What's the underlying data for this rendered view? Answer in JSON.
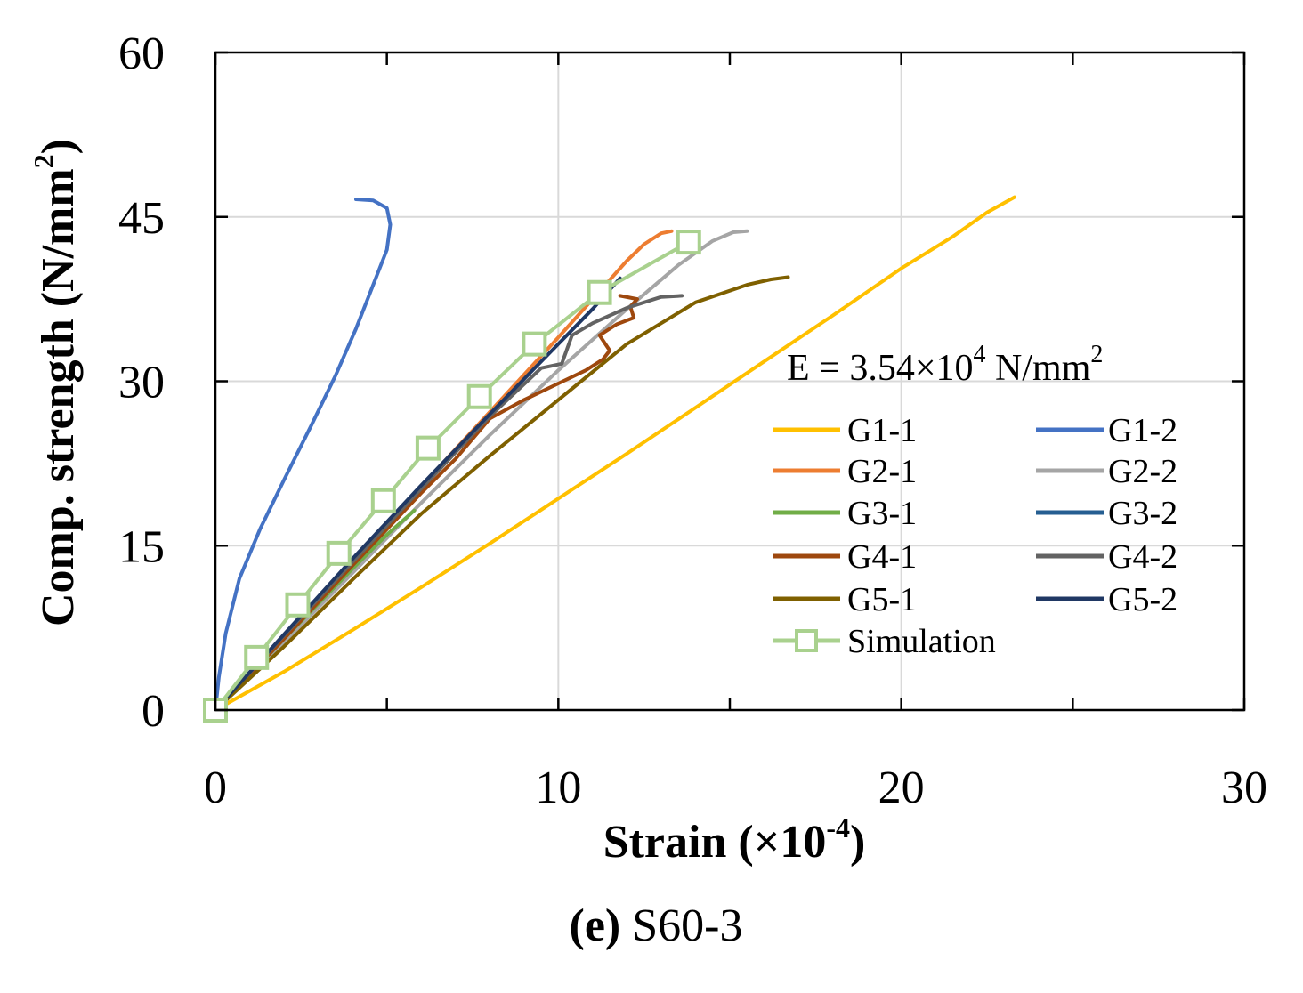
{
  "chart_data": {
    "type": "line",
    "xlabel": "Strain (×10",
    "xlabel_exp": "-4",
    "xlabel_close": ")",
    "ylabel": "Comp. strength (N/mm",
    "ylabel_exp": "2",
    "ylabel_close": ")",
    "xlim": [
      0,
      30
    ],
    "ylim": [
      0,
      60
    ],
    "xticks": [
      0,
      10,
      20,
      30
    ],
    "yticks": [
      0,
      15,
      30,
      45,
      60
    ],
    "xtick_labels": [
      "0",
      "10",
      "20",
      "30"
    ],
    "ytick_labels": [
      "0",
      "15",
      "30",
      "45",
      "60"
    ],
    "grid": true,
    "legend_position": "right",
    "annotation": {
      "prefix": "E = 3.54×10",
      "exp": "4",
      "unit": " N/mm",
      "unit_exp": "2"
    },
    "caption": {
      "bold": "(e)",
      "text": " S60-3"
    },
    "series": [
      {
        "name": "G1-1",
        "color": "#FFC000",
        "x": [
          0,
          2,
          4,
          6,
          8,
          10,
          12,
          14,
          16,
          18,
          20,
          21.5,
          22.5,
          23.3
        ],
        "y": [
          0,
          3.5,
          7.3,
          11.2,
          15.2,
          19.3,
          23.4,
          27.6,
          31.8,
          36.0,
          40.3,
          43.2,
          45.4,
          46.8
        ]
      },
      {
        "name": "G1-2",
        "color": "#4472C4",
        "x": [
          0,
          0.1,
          0.3,
          0.7,
          1.3,
          2.0,
          2.8,
          3.5,
          4.1,
          4.6,
          5.0,
          5.1,
          5.0,
          4.6,
          4.1
        ],
        "y": [
          0,
          3,
          7,
          12,
          16.5,
          21,
          26,
          30.5,
          34.8,
          38.8,
          42,
          44.3,
          45.8,
          46.5,
          46.6
        ]
      },
      {
        "name": "G2-1",
        "color": "#ED7D31",
        "x": [
          0,
          2,
          4,
          6,
          8,
          10,
          11,
          12,
          12.5,
          13.0,
          13.3
        ],
        "y": [
          0,
          6.8,
          13.6,
          20.4,
          27.2,
          34,
          37.5,
          41,
          42.5,
          43.5,
          43.7
        ]
      },
      {
        "name": "G2-2",
        "color": "#A5A5A5",
        "x": [
          0,
          2,
          4,
          6,
          8,
          10,
          12,
          13.5,
          14.5,
          15.1,
          15.5
        ],
        "y": [
          0,
          6.2,
          12.5,
          18.9,
          25.1,
          31.0,
          36.6,
          40.6,
          42.8,
          43.6,
          43.7
        ]
      },
      {
        "name": "G3-1",
        "color": "#70AD47",
        "x": [
          0,
          1,
          2,
          3,
          4,
          5,
          5.8
        ],
        "y": [
          0,
          3.2,
          6.5,
          9.7,
          12.9,
          16.0,
          18.2
        ]
      },
      {
        "name": "G3-2",
        "color": "#255E91",
        "x": [
          0,
          1,
          2,
          3,
          4,
          5
        ],
        "y": [
          0,
          3.3,
          6.6,
          9.9,
          13.2,
          16.5
        ]
      },
      {
        "name": "G4-1",
        "color": "#9E480E",
        "x": [
          0,
          2,
          4,
          6,
          7,
          8,
          9,
          10,
          10.8,
          11.3,
          11.5,
          11.2,
          11.7,
          12.2,
          12.1,
          12.3,
          11.8
        ],
        "y": [
          0,
          6.5,
          13.2,
          19.8,
          22.9,
          26.6,
          28.3,
          29.8,
          31.0,
          32.0,
          32.8,
          34.2,
          35.2,
          35.8,
          36.8,
          37.5,
          37.8
        ]
      },
      {
        "name": "G4-2",
        "color": "#636363",
        "x": [
          0,
          2,
          4,
          6,
          8,
          9.5,
          10.1,
          10.4,
          11.0,
          12.0,
          13.0,
          13.6
        ],
        "y": [
          0,
          6.8,
          13.5,
          20.2,
          26.8,
          31.2,
          31.6,
          34.2,
          35.3,
          36.7,
          37.7,
          37.8
        ]
      },
      {
        "name": "G5-1",
        "color": "#7F6000",
        "x": [
          0,
          2,
          4,
          6,
          8,
          10,
          12,
          14,
          15.5,
          16.2,
          16.7
        ],
        "y": [
          0,
          5.8,
          11.9,
          17.9,
          23.2,
          28.3,
          33.4,
          37.2,
          38.8,
          39.3,
          39.5
        ]
      },
      {
        "name": "G5-2",
        "color": "#203864",
        "x": [
          0,
          2,
          4,
          6,
          8,
          10,
          11,
          11.8
        ],
        "y": [
          0,
          6.9,
          13.8,
          20.5,
          27.0,
          33.4,
          36.6,
          39.4
        ]
      },
      {
        "name": "Simulation",
        "color": "#A9D18E",
        "marker": "square",
        "x": [
          0,
          1.2,
          2.4,
          3.6,
          4.9,
          6.2,
          7.7,
          9.3,
          11.2,
          13.8
        ],
        "y": [
          0,
          4.8,
          9.6,
          14.3,
          19.1,
          23.9,
          28.6,
          33.4,
          38.1,
          42.7
        ]
      }
    ]
  }
}
